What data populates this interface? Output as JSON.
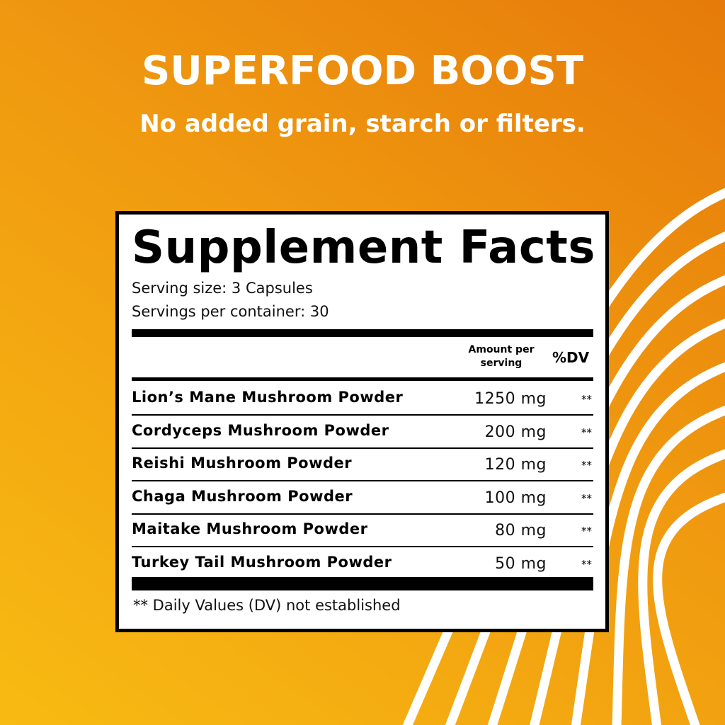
{
  "headline": "SUPERFOOD BOOST",
  "subheadline": "No added grain, starch or filters.",
  "colors": {
    "background_top": "#e67a0a",
    "background_bottom": "#f8bb12",
    "stripes": "#ffffff"
  },
  "facts": {
    "title": "Supplement Facts",
    "serving_size": "Serving size: 3 Capsules",
    "servings_per_container": "Servings per container: 30",
    "header_amount": "Amount per serving",
    "header_dv": "%DV",
    "rows": [
      {
        "name": "Lion’s Mane Mushroom Powder",
        "amount": "1250 mg",
        "dv": "**"
      },
      {
        "name": "Cordyceps Mushroom Powder",
        "amount": "200 mg",
        "dv": "**"
      },
      {
        "name": "Reishi Mushroom Powder",
        "amount": "120 mg",
        "dv": "**"
      },
      {
        "name": "Chaga Mushroom Powder",
        "amount": "100 mg",
        "dv": "**"
      },
      {
        "name": "Maitake Mushroom Powder",
        "amount": "80 mg",
        "dv": "**"
      },
      {
        "name": "Turkey Tail Mushroom Powder",
        "amount": "50 mg",
        "dv": "**"
      }
    ],
    "footnote": "** Daily Values (DV) not established"
  }
}
